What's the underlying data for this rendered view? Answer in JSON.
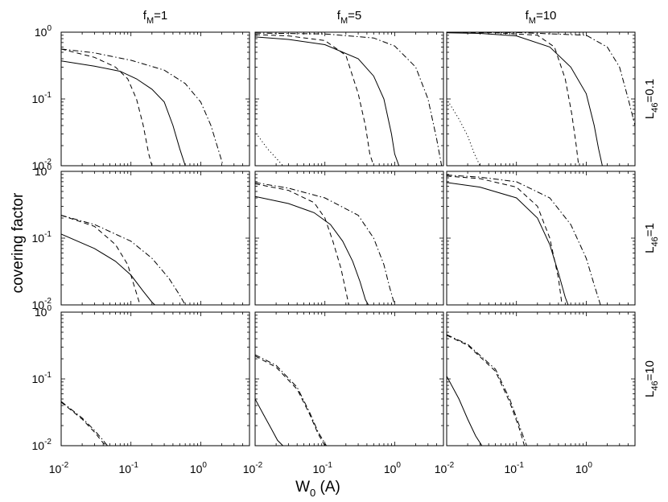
{
  "chart_data": {
    "type": "line",
    "xlabel": "W",
    "xlabel_sub": "0",
    "xlabel_unit": " (A)",
    "ylabel": "covering factor",
    "xscale": "log",
    "yscale": "log",
    "xlim": [
      0.01,
      5
    ],
    "ylim": [
      0.01,
      1
    ],
    "grid": false,
    "column_titles": [
      {
        "main": "f",
        "sub": "M",
        "rest": "=1"
      },
      {
        "main": "f",
        "sub": "M",
        "rest": "=5"
      },
      {
        "main": "f",
        "sub": "M",
        "rest": "=10"
      }
    ],
    "row_labels": [
      {
        "main": "L",
        "sub": "46",
        "rest": "=0.1"
      },
      {
        "main": "L",
        "sub": "46",
        "rest": "=1"
      },
      {
        "main": "L",
        "sub": "46",
        "rest": "=10"
      }
    ],
    "x_tick_labels": [
      {
        "base": "10",
        "exp": "-2",
        "value": 0.01
      },
      {
        "base": "10",
        "exp": "-1",
        "value": 0.1
      },
      {
        "base": "10",
        "exp": "0",
        "value": 1
      }
    ],
    "y_tick_labels": [
      {
        "base": "10",
        "exp": "-2",
        "value": 0.01
      },
      {
        "base": "10",
        "exp": "-1",
        "value": 0.1
      },
      {
        "base": "10",
        "exp": "0",
        "value": 1
      }
    ],
    "panels": [
      {
        "row": 0,
        "col": 0,
        "series": [
          {
            "style": "solid",
            "x": [
              0.01,
              0.03,
              0.07,
              0.12,
              0.2,
              0.3,
              0.4,
              0.5,
              0.6
            ],
            "y": [
              0.37,
              0.31,
              0.26,
              0.2,
              0.14,
              0.09,
              0.04,
              0.018,
              0.01
            ]
          },
          {
            "style": "dashed",
            "x": [
              0.01,
              0.03,
              0.06,
              0.09,
              0.12,
              0.15,
              0.18,
              0.2
            ],
            "y": [
              0.56,
              0.42,
              0.3,
              0.2,
              0.1,
              0.04,
              0.015,
              0.01
            ]
          },
          {
            "style": "dashdot",
            "x": [
              0.01,
              0.03,
              0.1,
              0.3,
              0.6,
              1.0,
              1.4,
              1.8,
              2.1
            ],
            "y": [
              0.56,
              0.49,
              0.38,
              0.27,
              0.17,
              0.09,
              0.04,
              0.017,
              0.01
            ]
          }
        ]
      },
      {
        "row": 0,
        "col": 1,
        "series": [
          {
            "style": "solid",
            "x": [
              0.01,
              0.03,
              0.1,
              0.3,
              0.5,
              0.7,
              0.9,
              1.0,
              1.15
            ],
            "y": [
              0.85,
              0.78,
              0.65,
              0.4,
              0.22,
              0.1,
              0.03,
              0.015,
              0.01
            ]
          },
          {
            "style": "dashed",
            "x": [
              0.01,
              0.03,
              0.1,
              0.2,
              0.3,
              0.38,
              0.44,
              0.5
            ],
            "y": [
              0.92,
              0.88,
              0.75,
              0.45,
              0.12,
              0.04,
              0.015,
              0.01
            ]
          },
          {
            "style": "dashdot",
            "x": [
              0.01,
              0.1,
              0.5,
              1.0,
              2.0,
              3.0,
              4.0,
              4.7
            ],
            "y": [
              0.97,
              0.94,
              0.82,
              0.62,
              0.3,
              0.1,
              0.025,
              0.01
            ]
          },
          {
            "style": "dotted",
            "x": [
              0.011,
              0.015,
              0.02,
              0.025
            ],
            "y": [
              0.028,
              0.018,
              0.013,
              0.01
            ]
          }
        ]
      },
      {
        "row": 0,
        "col": 2,
        "series": [
          {
            "style": "solid",
            "x": [
              0.01,
              0.03,
              0.1,
              0.3,
              0.6,
              1.0,
              1.3,
              1.5,
              1.7
            ],
            "y": [
              0.98,
              0.96,
              0.88,
              0.6,
              0.3,
              0.12,
              0.04,
              0.018,
              0.01
            ]
          },
          {
            "style": "dashed",
            "x": [
              0.01,
              0.05,
              0.2,
              0.35,
              0.5,
              0.62,
              0.72,
              0.78
            ],
            "y": [
              0.99,
              0.98,
              0.9,
              0.6,
              0.2,
              0.06,
              0.02,
              0.01
            ]
          },
          {
            "style": "dashdot",
            "x": [
              0.01,
              0.1,
              1.0,
              2.0,
              3.0,
              4.0,
              5.0
            ],
            "y": [
              1.0,
              0.99,
              0.9,
              0.6,
              0.3,
              0.1,
              0.04
            ]
          },
          {
            "style": "dotted",
            "x": [
              0.011,
              0.015,
              0.02,
              0.025,
              0.03
            ],
            "y": [
              0.085,
              0.05,
              0.028,
              0.015,
              0.01
            ]
          }
        ]
      },
      {
        "row": 1,
        "col": 0,
        "series": [
          {
            "style": "solid",
            "x": [
              0.01,
              0.03,
              0.06,
              0.1,
              0.15,
              0.2,
              0.22
            ],
            "y": [
              0.115,
              0.07,
              0.045,
              0.028,
              0.016,
              0.011,
              0.01
            ]
          },
          {
            "style": "dashed",
            "x": [
              0.01,
              0.03,
              0.06,
              0.09,
              0.11,
              0.125,
              0.135
            ],
            "y": [
              0.22,
              0.15,
              0.08,
              0.04,
              0.02,
              0.013,
              0.01
            ]
          },
          {
            "style": "dashdot",
            "x": [
              0.01,
              0.03,
              0.1,
              0.2,
              0.35,
              0.5,
              0.6
            ],
            "y": [
              0.22,
              0.16,
              0.09,
              0.05,
              0.025,
              0.014,
              0.01
            ]
          }
        ]
      },
      {
        "row": 1,
        "col": 1,
        "series": [
          {
            "style": "solid",
            "x": [
              0.01,
              0.03,
              0.07,
              0.12,
              0.18,
              0.25,
              0.32,
              0.38,
              0.42
            ],
            "y": [
              0.42,
              0.33,
              0.24,
              0.16,
              0.09,
              0.045,
              0.022,
              0.012,
              0.01
            ]
          },
          {
            "style": "dashed",
            "x": [
              0.01,
              0.03,
              0.07,
              0.1,
              0.13,
              0.17,
              0.2,
              0.22
            ],
            "y": [
              0.65,
              0.52,
              0.34,
              0.2,
              0.09,
              0.035,
              0.016,
              0.01
            ]
          },
          {
            "style": "dashdot",
            "x": [
              0.01,
              0.03,
              0.1,
              0.3,
              0.5,
              0.7,
              0.85,
              1.0
            ],
            "y": [
              0.68,
              0.56,
              0.4,
              0.22,
              0.1,
              0.04,
              0.018,
              0.01
            ]
          }
        ]
      },
      {
        "row": 1,
        "col": 2,
        "series": [
          {
            "style": "solid",
            "x": [
              0.01,
              0.03,
              0.1,
              0.2,
              0.3,
              0.4,
              0.5,
              0.55
            ],
            "y": [
              0.68,
              0.58,
              0.4,
              0.2,
              0.08,
              0.03,
              0.013,
              0.01
            ]
          },
          {
            "style": "dashed",
            "x": [
              0.01,
              0.03,
              0.1,
              0.2,
              0.3,
              0.4,
              0.45
            ],
            "y": [
              0.85,
              0.78,
              0.58,
              0.3,
              0.1,
              0.025,
              0.01
            ]
          },
          {
            "style": "dashdot",
            "x": [
              0.01,
              0.03,
              0.1,
              0.3,
              0.6,
              1.0,
              1.3,
              1.6
            ],
            "y": [
              0.88,
              0.82,
              0.7,
              0.4,
              0.16,
              0.05,
              0.02,
              0.01
            ]
          }
        ]
      },
      {
        "row": 2,
        "col": 0,
        "series": [
          {
            "style": "dashed",
            "x": [
              0.01,
              0.02,
              0.03,
              0.04,
              0.045
            ],
            "y": [
              0.045,
              0.025,
              0.016,
              0.011,
              0.01
            ]
          },
          {
            "style": "dashdot",
            "x": [
              0.01,
              0.02,
              0.03,
              0.04,
              0.046
            ],
            "y": [
              0.046,
              0.026,
              0.017,
              0.012,
              0.01
            ]
          }
        ]
      },
      {
        "row": 2,
        "col": 1,
        "series": [
          {
            "style": "solid",
            "x": [
              0.01,
              0.013,
              0.017,
              0.021,
              0.025
            ],
            "y": [
              0.05,
              0.03,
              0.018,
              0.012,
              0.01
            ]
          },
          {
            "style": "dashed",
            "x": [
              0.01,
              0.02,
              0.04,
              0.06,
              0.08,
              0.1
            ],
            "y": [
              0.22,
              0.15,
              0.07,
              0.03,
              0.015,
              0.01
            ]
          },
          {
            "style": "dashdot",
            "x": [
              0.01,
              0.02,
              0.04,
              0.06,
              0.08,
              0.105
            ],
            "y": [
              0.23,
              0.16,
              0.075,
              0.032,
              0.016,
              0.01
            ]
          }
        ]
      },
      {
        "row": 2,
        "col": 2,
        "series": [
          {
            "style": "solid",
            "x": [
              0.01,
              0.015,
              0.02,
              0.026,
              0.032
            ],
            "y": [
              0.11,
              0.05,
              0.025,
              0.014,
              0.01
            ]
          },
          {
            "style": "dashed",
            "x": [
              0.01,
              0.02,
              0.05,
              0.08,
              0.11,
              0.13
            ],
            "y": [
              0.45,
              0.32,
              0.13,
              0.045,
              0.018,
              0.01
            ]
          },
          {
            "style": "dashdot",
            "x": [
              0.01,
              0.02,
              0.05,
              0.08,
              0.11,
              0.14
            ],
            "y": [
              0.46,
              0.33,
              0.14,
              0.05,
              0.02,
              0.01
            ]
          }
        ]
      }
    ]
  }
}
